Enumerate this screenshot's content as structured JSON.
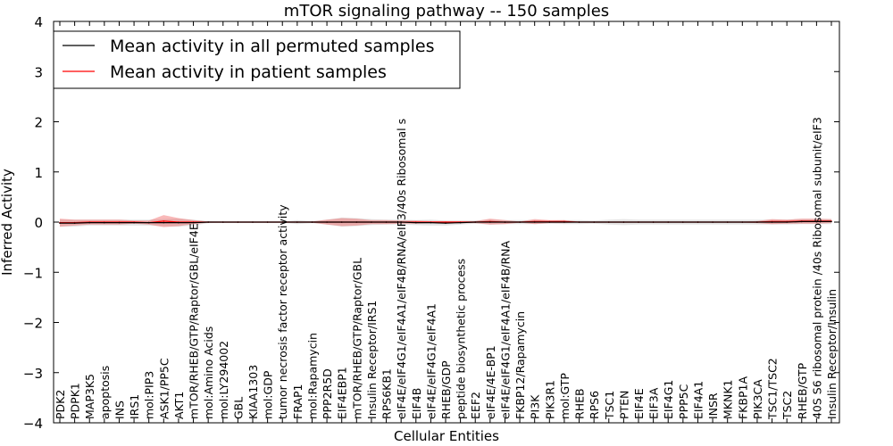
{
  "chart_data": {
    "type": "line",
    "title": "mTOR signaling pathway -- 150 samples",
    "xlabel": "Cellular Entities",
    "ylabel": "Inferred Activity",
    "ylim": [
      -4,
      4
    ],
    "yticks": [
      "−4",
      "−3",
      "−2",
      "−1",
      "0",
      "1",
      "2",
      "3",
      "4"
    ],
    "grid": false,
    "legend_position": "top-left",
    "categories": [
      "PDK2",
      "PDPK1",
      "MAP3K5",
      "apoptosis",
      "INS",
      "IRS1",
      "mol:PIP3",
      "ASK1/PP5C",
      "AKT1",
      "mTOR/RHEB/GTP/Raptor/GBL/eIF4E",
      "mol:Amino Acids",
      "mol:LY294002",
      "GBL",
      "KIAA1303",
      "mol:GDP",
      "tumor necrosis factor receptor activity",
      "FRAP1",
      "mol:Rapamycin",
      "PPP2R5D",
      "EIF4EBP1",
      "mTOR/RHEB/GTP/Raptor/GBL",
      "Insulin Receptor/IRS1",
      "RPS6KB1",
      "eIF4E/eIF4G1/eIF4A1/eIF4B/RNA/eIF3/40s Ribosomal s",
      "EIF4B",
      "eIF4E/eIF4G1/eIF4A1",
      "RHEB/GDP",
      "peptide biosynthetic process",
      "EEF2",
      "eIF4E/4E-BP1",
      "eIF4E/eIF4G1/eIF4A1/eIF4B/RNA",
      "FKBP12/Rapamycin",
      "PI3K",
      "PIK3R1",
      "mol:GTP",
      "RHEB",
      "RPS6",
      "TSC1",
      "PTEN",
      "EIF4E",
      "EIF3A",
      "EIF4G1",
      "PPP5C",
      "EIF4A1",
      "INSR",
      "MKNK1",
      "FKBP1A",
      "PIK3CA",
      "TSC1/TSC2",
      "TSC2",
      "RHEB/GTP",
      "40S S6 ribosomal protein /40s Ribosomal subunit/eIF3",
      "Insulin Receptor/Insulin"
    ],
    "series": [
      {
        "name": "Mean activity in all permuted samples",
        "color": "#000000",
        "values": [
          -0.02,
          -0.02,
          -0.01,
          -0.01,
          -0.01,
          -0.01,
          -0.01,
          -0.01,
          -0.01,
          -0.01,
          0,
          0,
          0,
          0,
          0,
          0,
          0,
          0,
          0,
          0,
          0,
          0,
          0,
          0,
          -0.01,
          -0.01,
          -0.02,
          -0.01,
          0,
          0,
          0,
          0,
          0,
          0,
          0,
          0,
          0,
          0,
          0,
          0,
          0,
          0,
          0,
          0,
          0,
          0,
          0,
          0,
          0,
          0,
          0.01,
          0.01,
          0.01
        ],
        "band": [
          0.07,
          0.07,
          0.06,
          0.06,
          0.06,
          0.06,
          0.06,
          0.07,
          0.08,
          0.06,
          0.02,
          0.01,
          0.01,
          0.01,
          0.01,
          0.01,
          0.04,
          0.02,
          0.05,
          0.09,
          0.08,
          0.06,
          0.05,
          0.05,
          0.05,
          0.06,
          0.05,
          0.04,
          0.03,
          0.05,
          0.04,
          0.04,
          0.04,
          0.03,
          0.04,
          0.04,
          0.03,
          0.05,
          0.06,
          0.05,
          0.05,
          0.05,
          0.05,
          0.05,
          0.05,
          0.05,
          0.05,
          0.05,
          0.05,
          0.05,
          0.05,
          0.05,
          0.05
        ]
      },
      {
        "name": "Mean activity in patient samples",
        "color": "#ff0000",
        "values": [
          -0.01,
          -0.01,
          0,
          0,
          0,
          0,
          -0.01,
          0.02,
          0,
          0,
          0,
          0,
          0,
          0,
          0,
          0,
          0,
          0,
          0,
          0,
          0,
          0,
          0,
          0,
          0,
          0,
          0,
          0,
          0,
          0.01,
          0,
          0,
          0.01,
          0.01,
          0.01,
          0,
          0,
          0,
          0,
          0,
          0,
          0,
          0,
          0,
          0,
          0,
          0,
          0,
          0.01,
          0.01,
          0.02,
          0.02,
          0.02
        ],
        "band": [
          0.08,
          0.06,
          0.05,
          0.05,
          0.05,
          0.03,
          0.04,
          0.12,
          0.08,
          0.04,
          0.01,
          0.01,
          0.01,
          0.01,
          0.01,
          0.01,
          0.01,
          0.01,
          0.05,
          0.08,
          0.07,
          0.04,
          0.04,
          0.03,
          0.03,
          0.02,
          0.02,
          0.02,
          0.02,
          0.06,
          0.04,
          0.01,
          0.05,
          0.03,
          0.03,
          0.01,
          0.01,
          0.01,
          0.01,
          0.01,
          0.01,
          0.01,
          0.01,
          0.01,
          0.01,
          0.01,
          0.01,
          0.02,
          0.05,
          0.04,
          0.05,
          0.05,
          0.04
        ]
      }
    ]
  }
}
